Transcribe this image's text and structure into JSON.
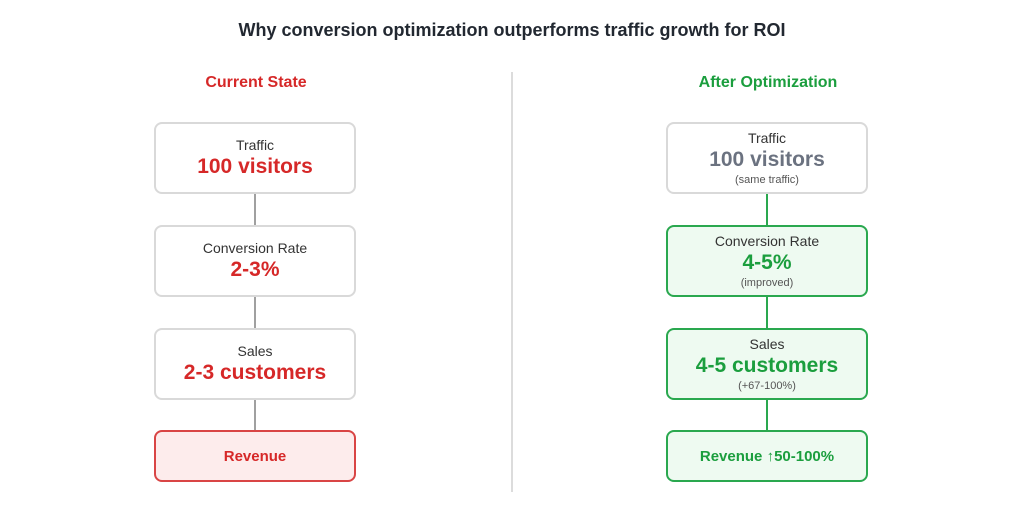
{
  "title": "Why conversion optimization outperforms traffic growth for ROI",
  "current": {
    "heading": "Current State",
    "traffic": {
      "label": "Traffic",
      "value": "100 visitors"
    },
    "conversion": {
      "label": "Conversion Rate",
      "value": "2-3%"
    },
    "sales": {
      "label": "Sales",
      "value": "2-3 customers"
    },
    "revenue": {
      "label": "Revenue"
    }
  },
  "optimized": {
    "heading": "After Optimization",
    "traffic": {
      "label": "Traffic",
      "value": "100 visitors",
      "note": "(same traffic)"
    },
    "conversion": {
      "label": "Conversion Rate",
      "value": "4-5%",
      "note": "(improved)"
    },
    "sales": {
      "label": "Sales",
      "value": "4-5 customers",
      "note": "(+67-100%)"
    },
    "revenue": {
      "label": "Revenue ↑50-100%"
    }
  },
  "colors": {
    "red": "#d62828",
    "green": "#1b9e3e",
    "gray": "#6b7280"
  }
}
